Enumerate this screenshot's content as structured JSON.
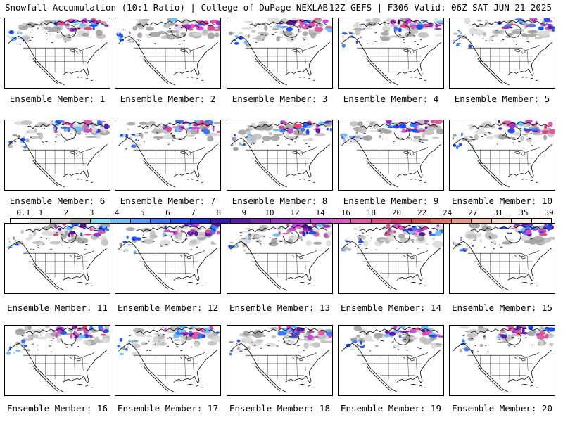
{
  "header": {
    "title": "Snowfall Accumulation (10:1 Ratio) | College of DuPage NEXLAB",
    "run_info": "12Z GEFS | F306 Valid: 06Z SAT JUN 21 2025"
  },
  "colorbar": {
    "labels": [
      "0.1",
      "1",
      "2",
      "3",
      "4",
      "5",
      "6",
      "7",
      "8",
      "9",
      "10",
      "12",
      "14",
      "16",
      "18",
      "20",
      "22",
      "24",
      "27",
      "31",
      "35",
      "39"
    ],
    "colors": [
      "#ffffff",
      "#e4e4e4",
      "#c8c8c8",
      "#a4a4a4",
      "#80e0ff",
      "#70c0ff",
      "#5a9cff",
      "#3878ff",
      "#1c50f0",
      "#1a2fd0",
      "#3a1ab0",
      "#5b1aa6",
      "#7a26b0",
      "#9a32c0",
      "#b23ed0",
      "#cc4ad6",
      "#dc5ac6",
      "#e25aa6",
      "#e24a86",
      "#d43a66",
      "#d84c4c",
      "#e07060",
      "#e89a88",
      "#f0bca8",
      "#f6d8c8",
      "#faeadf",
      "#fdf6f0"
    ]
  },
  "panels": [
    {
      "caption": "Ensemble Member: 1"
    },
    {
      "caption": "Ensemble Member: 2"
    },
    {
      "caption": "Ensemble Member: 3"
    },
    {
      "caption": "Ensemble Member: 4"
    },
    {
      "caption": "Ensemble Member: 5"
    },
    {
      "caption": "Ensemble Member: 6"
    },
    {
      "caption": "Ensemble Member: 7"
    },
    {
      "caption": "Ensemble Member: 8"
    },
    {
      "caption": "Ensemble Member: 9"
    },
    {
      "caption": "Ensemble Member: 10"
    },
    {
      "caption": "Ensemble Member: 11"
    },
    {
      "caption": "Ensemble Member: 12"
    },
    {
      "caption": "Ensemble Member: 13"
    },
    {
      "caption": "Ensemble Member: 14"
    },
    {
      "caption": "Ensemble Member: 15"
    },
    {
      "caption": "Ensemble Member: 16"
    },
    {
      "caption": "Ensemble Member: 17"
    },
    {
      "caption": "Ensemble Member: 18"
    },
    {
      "caption": "Ensemble Member: 19"
    },
    {
      "caption": "Ensemble Member: 20"
    }
  ]
}
